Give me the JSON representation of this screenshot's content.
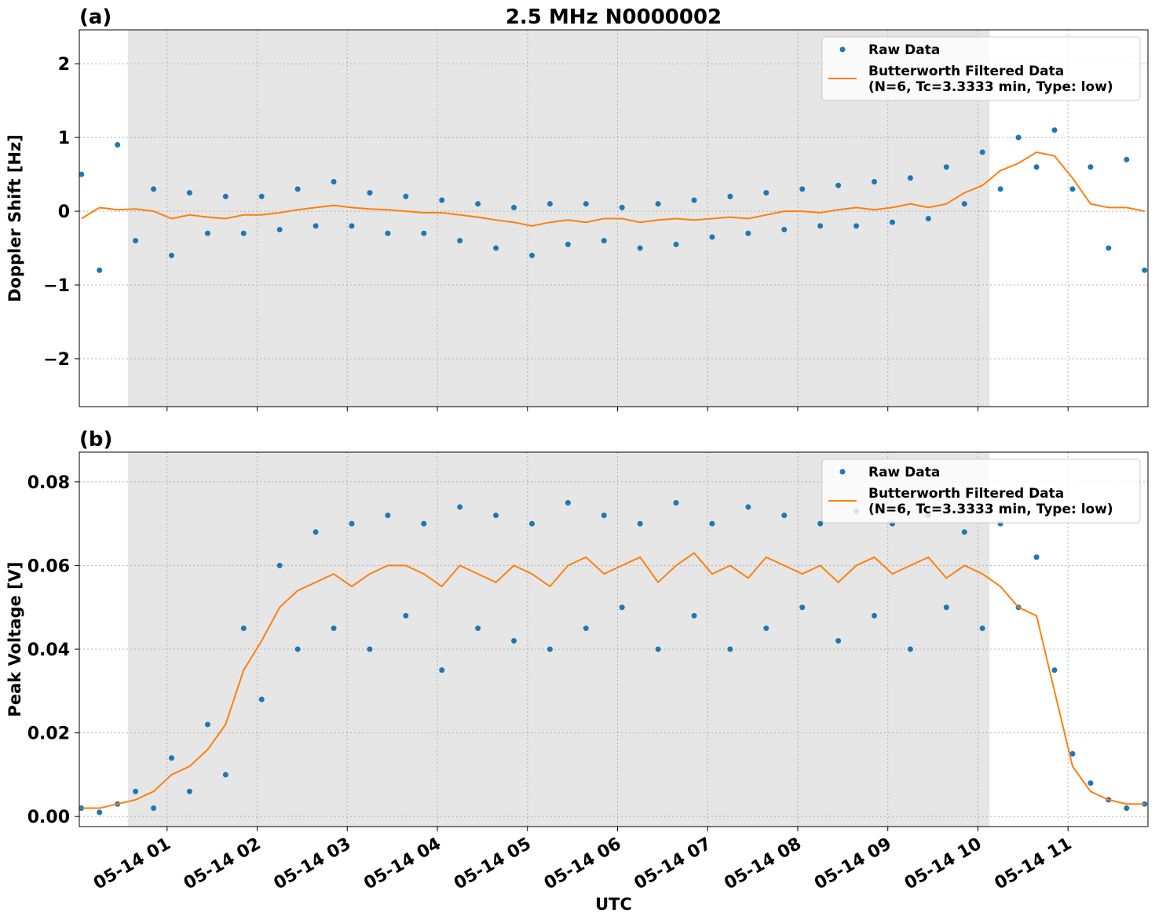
{
  "chart_data": [
    {
      "type": "scatter",
      "title": "2.5 MHz N0000002",
      "panel_label": "(a)",
      "ylabel": "Doppler Shift [Hz]",
      "x": [
        0.05,
        0.25,
        0.45,
        0.65,
        0.85,
        1.05,
        1.25,
        1.45,
        1.65,
        1.85,
        2.05,
        2.25,
        2.45,
        2.65,
        2.85,
        3.05,
        3.25,
        3.45,
        3.65,
        3.85,
        4.05,
        4.25,
        4.45,
        4.65,
        4.85,
        5.05,
        5.25,
        5.45,
        5.65,
        5.85,
        6.05,
        6.25,
        6.45,
        6.65,
        6.85,
        7.05,
        7.25,
        7.45,
        7.65,
        7.85,
        8.05,
        8.25,
        8.45,
        8.65,
        8.85,
        9.05,
        9.25,
        9.45,
        9.65,
        9.85,
        10.05,
        10.25,
        10.45,
        10.65,
        10.85,
        11.05,
        11.25,
        11.45,
        11.65,
        11.85
      ],
      "series": [
        {
          "name": "Raw Data",
          "color": "#1f77b4",
          "mode": "markers",
          "values": [
            0.5,
            -0.8,
            0.9,
            -0.4,
            0.3,
            -0.6,
            0.25,
            -0.3,
            0.2,
            -0.3,
            0.2,
            -0.25,
            0.3,
            -0.2,
            0.4,
            -0.2,
            0.25,
            -0.3,
            0.2,
            -0.3,
            0.15,
            -0.4,
            0.1,
            -0.5,
            0.05,
            -0.6,
            0.1,
            -0.45,
            0.1,
            -0.4,
            0.05,
            -0.5,
            0.1,
            -0.45,
            0.15,
            -0.35,
            0.2,
            -0.3,
            0.25,
            -0.25,
            0.3,
            -0.2,
            0.35,
            -0.2,
            0.4,
            -0.15,
            0.45,
            -0.1,
            0.6,
            0.1,
            0.8,
            0.3,
            1.0,
            0.6,
            1.1,
            0.3,
            0.6,
            -0.5,
            0.7,
            -0.8
          ]
        },
        {
          "name": "Butterworth Filtered Data\n(N=6, Tc=3.3333 min, Type: low)",
          "color": "#ff7f0e",
          "mode": "line",
          "values": [
            -0.1,
            0.05,
            0.02,
            0.03,
            0.0,
            -0.1,
            -0.05,
            -0.08,
            -0.1,
            -0.05,
            -0.05,
            -0.02,
            0.02,
            0.05,
            0.08,
            0.05,
            0.03,
            0.02,
            0.0,
            -0.02,
            -0.02,
            -0.05,
            -0.08,
            -0.12,
            -0.15,
            -0.2,
            -0.15,
            -0.12,
            -0.15,
            -0.1,
            -0.1,
            -0.15,
            -0.12,
            -0.1,
            -0.12,
            -0.1,
            -0.08,
            -0.1,
            -0.05,
            0.0,
            0.0,
            -0.02,
            0.02,
            0.05,
            0.02,
            0.05,
            0.1,
            0.05,
            0.1,
            0.25,
            0.35,
            0.55,
            0.65,
            0.8,
            0.75,
            0.45,
            0.1,
            0.05,
            0.05,
            0.0
          ]
        }
      ],
      "xlim": [
        0.026,
        11.887
      ],
      "xticks": [
        1,
        2,
        3,
        4,
        5,
        6,
        7,
        8,
        9,
        10,
        11
      ],
      "ylim": [
        -2.65,
        2.46
      ],
      "yticks": [
        {
          "value": -2,
          "label": "−2"
        },
        {
          "value": -1,
          "label": "−1"
        },
        0,
        1,
        2
      ],
      "shade": [
        0.565,
        10.13
      ],
      "grid": true,
      "legend": "upper right"
    },
    {
      "type": "scatter",
      "panel_label": "(b)",
      "ylabel": "Peak Voltage [V]",
      "xlabel": "UTC",
      "x": [
        0.05,
        0.25,
        0.45,
        0.65,
        0.85,
        1.05,
        1.25,
        1.45,
        1.65,
        1.85,
        2.05,
        2.25,
        2.45,
        2.65,
        2.85,
        3.05,
        3.25,
        3.45,
        3.65,
        3.85,
        4.05,
        4.25,
        4.45,
        4.65,
        4.85,
        5.05,
        5.25,
        5.45,
        5.65,
        5.85,
        6.05,
        6.25,
        6.45,
        6.65,
        6.85,
        7.05,
        7.25,
        7.45,
        7.65,
        7.85,
        8.05,
        8.25,
        8.45,
        8.65,
        8.85,
        9.05,
        9.25,
        9.45,
        9.65,
        9.85,
        10.05,
        10.25,
        10.45,
        10.65,
        10.85,
        11.05,
        11.25,
        11.45,
        11.65,
        11.85
      ],
      "series": [
        {
          "name": "Raw Data",
          "color": "#1f77b4",
          "mode": "markers",
          "values": [
            0.002,
            0.001,
            0.003,
            0.006,
            0.002,
            0.014,
            0.006,
            0.022,
            0.01,
            0.045,
            0.028,
            0.06,
            0.04,
            0.068,
            0.045,
            0.07,
            0.04,
            0.072,
            0.048,
            0.07,
            0.035,
            0.074,
            0.045,
            0.072,
            0.042,
            0.07,
            0.04,
            0.075,
            0.045,
            0.072,
            0.05,
            0.07,
            0.04,
            0.075,
            0.048,
            0.07,
            0.04,
            0.074,
            0.045,
            0.072,
            0.05,
            0.07,
            0.042,
            0.073,
            0.048,
            0.07,
            0.04,
            0.072,
            0.05,
            0.068,
            0.045,
            0.07,
            0.05,
            0.062,
            0.035,
            0.015,
            0.008,
            0.004,
            0.002,
            0.003
          ]
        },
        {
          "name": "Butterworth Filtered Data\n(N=6, Tc=3.3333 min, Type: low)",
          "color": "#ff7f0e",
          "mode": "line",
          "values": [
            0.002,
            0.002,
            0.003,
            0.004,
            0.006,
            0.01,
            0.012,
            0.016,
            0.022,
            0.035,
            0.042,
            0.05,
            0.054,
            0.056,
            0.058,
            0.055,
            0.058,
            0.06,
            0.06,
            0.058,
            0.055,
            0.06,
            0.058,
            0.056,
            0.06,
            0.058,
            0.055,
            0.06,
            0.062,
            0.058,
            0.06,
            0.062,
            0.056,
            0.06,
            0.063,
            0.058,
            0.06,
            0.057,
            0.062,
            0.06,
            0.058,
            0.06,
            0.056,
            0.06,
            0.062,
            0.058,
            0.06,
            0.062,
            0.057,
            0.06,
            0.058,
            0.055,
            0.05,
            0.048,
            0.03,
            0.012,
            0.006,
            0.004,
            0.003,
            0.003
          ]
        }
      ],
      "xlim": [
        0.026,
        11.887
      ],
      "xticks": [
        {
          "value": 1,
          "label": "05-14 01"
        },
        {
          "value": 2,
          "label": "05-14 02"
        },
        {
          "value": 3,
          "label": "05-14 03"
        },
        {
          "value": 4,
          "label": "05-14 04"
        },
        {
          "value": 5,
          "label": "05-14 05"
        },
        {
          "value": 6,
          "label": "05-14 06"
        },
        {
          "value": 7,
          "label": "05-14 07"
        },
        {
          "value": 8,
          "label": "05-14 08"
        },
        {
          "value": 9,
          "label": "05-14 09"
        },
        {
          "value": 10,
          "label": "05-14 10"
        },
        {
          "value": 11,
          "label": "05-14 11"
        }
      ],
      "ylim": [
        -0.0024,
        0.0871
      ],
      "yticks": [
        {
          "value": 0,
          "label": "0.00"
        },
        0.02,
        0.04,
        0.06,
        0.08
      ],
      "shade": [
        0.565,
        10.13
      ],
      "grid": true,
      "legend": "upper right"
    }
  ]
}
